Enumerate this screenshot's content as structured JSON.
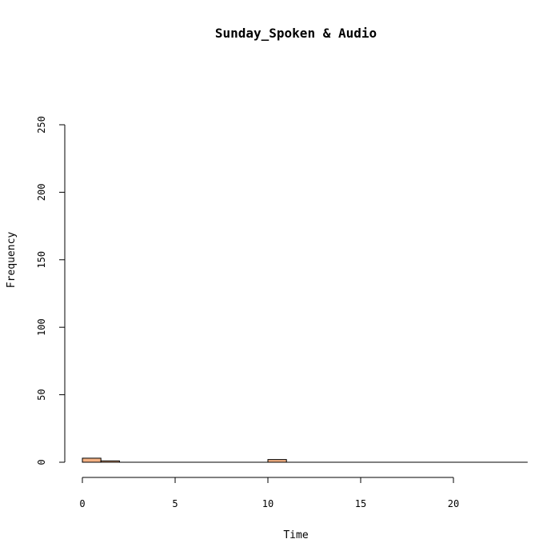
{
  "chart_data": {
    "type": "bar",
    "subtype": "histogram",
    "title": "Sunday_Spoken & Audio",
    "xlabel": "Time",
    "ylabel": "Frequency",
    "xlim": [
      0,
      24
    ],
    "ylim": [
      0,
      250
    ],
    "x_ticks": [
      0,
      5,
      10,
      15,
      20
    ],
    "y_ticks": [
      0,
      50,
      100,
      150,
      200,
      250
    ],
    "bar_color": "#f4b183",
    "bins": [
      {
        "start": 0,
        "end": 1,
        "count": 3
      },
      {
        "start": 1,
        "end": 2,
        "count": 1
      },
      {
        "start": 2,
        "end": 3,
        "count": 0
      },
      {
        "start": 3,
        "end": 4,
        "count": 0
      },
      {
        "start": 4,
        "end": 5,
        "count": 0
      },
      {
        "start": 5,
        "end": 6,
        "count": 0
      },
      {
        "start": 6,
        "end": 7,
        "count": 0
      },
      {
        "start": 7,
        "end": 8,
        "count": 0
      },
      {
        "start": 8,
        "end": 9,
        "count": 0
      },
      {
        "start": 9,
        "end": 10,
        "count": 0
      },
      {
        "start": 10,
        "end": 11,
        "count": 2
      },
      {
        "start": 11,
        "end": 12,
        "count": 0
      },
      {
        "start": 12,
        "end": 13,
        "count": 0
      },
      {
        "start": 13,
        "end": 14,
        "count": 0
      },
      {
        "start": 14,
        "end": 15,
        "count": 0
      },
      {
        "start": 15,
        "end": 16,
        "count": 0
      },
      {
        "start": 16,
        "end": 17,
        "count": 0
      },
      {
        "start": 17,
        "end": 18,
        "count": 0
      },
      {
        "start": 18,
        "end": 19,
        "count": 0
      },
      {
        "start": 19,
        "end": 20,
        "count": 0
      },
      {
        "start": 20,
        "end": 21,
        "count": 0
      },
      {
        "start": 21,
        "end": 22,
        "count": 0
      },
      {
        "start": 22,
        "end": 23,
        "count": 0
      },
      {
        "start": 23,
        "end": 24,
        "count": 0
      }
    ]
  }
}
